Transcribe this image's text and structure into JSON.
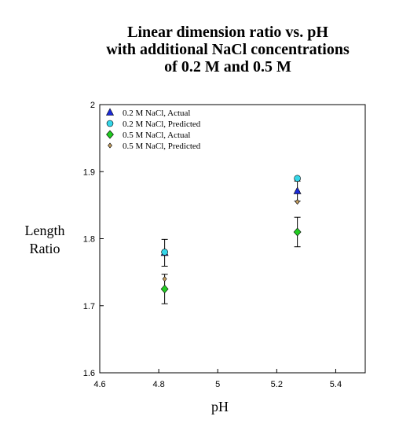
{
  "chart_data": {
    "type": "scatter",
    "title": [
      "Linear dimension ratio vs. pH",
      "with additional NaCl concentrations",
      "of 0.2 M and 0.5 M"
    ],
    "xlabel": "pH",
    "ylabel": [
      "Length",
      "Ratio"
    ],
    "xlim": [
      4.6,
      5.5
    ],
    "ylim": [
      1.6,
      2.0
    ],
    "xticks": [
      "4.6",
      "4.8",
      "5",
      "5.2",
      "5.4"
    ],
    "yticks": [
      "1.6",
      "1.7",
      "1.8",
      "1.9",
      "2"
    ],
    "grid": false,
    "legend_position": "top-left",
    "series": [
      {
        "name": "0.2 M NaCl, Actual",
        "marker": "triangle",
        "color": "#1a2ad8",
        "x": [
          4.82,
          5.27
        ],
        "y": [
          1.779,
          1.871
        ],
        "err": [
          0.02,
          0.015
        ]
      },
      {
        "name": "0.2 M NaCl, Predicted",
        "marker": "circle",
        "color": "#35d6e8",
        "x": [
          4.82,
          5.27
        ],
        "y": [
          1.78,
          1.89
        ],
        "err": null
      },
      {
        "name": "0.5 M NaCl, Actual",
        "marker": "diamond",
        "color": "#22cc22",
        "x": [
          4.82,
          5.27
        ],
        "y": [
          1.725,
          1.81
        ],
        "err": [
          0.022,
          0.022
        ]
      },
      {
        "name": "0.5 M NaCl, Predicted",
        "marker": "small-diamond",
        "color": "#c8a060",
        "x": [
          4.82,
          5.27
        ],
        "y": [
          1.74,
          1.855
        ],
        "err": null
      }
    ]
  }
}
